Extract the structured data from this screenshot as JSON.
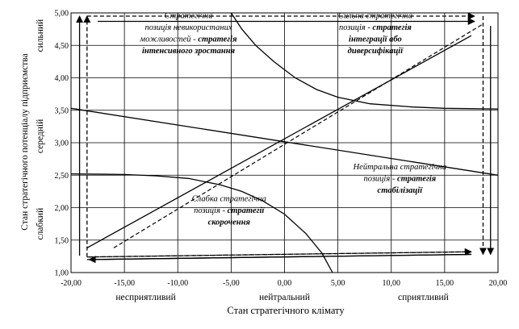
{
  "chart_data": {
    "type": "line",
    "xlabel": "Стан стратегічного  клімату",
    "ylabel": "Стан стратегічного потенціалу підприємства",
    "xlim": [
      -20,
      20
    ],
    "ylim": [
      1,
      5
    ],
    "x_ticks": [
      "-20,00",
      "-15,00",
      "-10,00",
      "-5,00",
      "0,00",
      "5,00",
      "10,00",
      "15,00",
      "20,00"
    ],
    "y_ticks": [
      "1,00",
      "1,50",
      "2,00",
      "2,50",
      "3,00",
      "3,50",
      "4,00",
      "4,50",
      "5,00"
    ],
    "x_categories": [
      {
        "label": "несприятливий",
        "x": -13
      },
      {
        "label": "нейтральний",
        "x": 0
      },
      {
        "label": "сприятливий",
        "x": 13
      }
    ],
    "y_categories": [
      {
        "label": "слабкий",
        "y": 1.75
      },
      {
        "label": "середній",
        "y": 3.1
      },
      {
        "label": "сильний",
        "y": 4.65
      }
    ],
    "grid": true,
    "series": [
      {
        "style": "solid",
        "points": [
          [
            -18.5,
            1.38
          ],
          [
            17.5,
            4.65
          ]
        ]
      },
      {
        "style": "dashed",
        "points": [
          [
            -16,
            1.38
          ],
          [
            18.5,
            4.82
          ]
        ]
      },
      {
        "style": "solid",
        "points": [
          [
            -20,
            3.53
          ],
          [
            20,
            2.5
          ]
        ]
      },
      {
        "style": "solid",
        "points": [
          [
            -5,
            5.0
          ],
          [
            -4,
            4.75
          ],
          [
            -2.7,
            4.5
          ],
          [
            -1,
            4.25
          ],
          [
            1,
            4.0
          ],
          [
            3,
            3.82
          ],
          [
            5,
            3.7
          ],
          [
            8,
            3.6
          ],
          [
            12,
            3.55
          ],
          [
            15,
            3.53
          ],
          [
            20,
            3.52
          ]
        ]
      },
      {
        "style": "solid",
        "points": [
          [
            -20,
            2.52
          ],
          [
            -15,
            2.51
          ],
          [
            -12,
            2.49
          ],
          [
            -9,
            2.45
          ],
          [
            -6,
            2.35
          ],
          [
            -4,
            2.25
          ],
          [
            -2,
            2.1
          ],
          [
            0,
            1.9
          ],
          [
            2,
            1.6
          ],
          [
            3.5,
            1.3
          ],
          [
            4.5,
            1.0
          ]
        ]
      },
      {
        "style": "solid",
        "points": [
          [
            -18.5,
            1.2
          ],
          [
            17.5,
            1.28
          ]
        ]
      },
      {
        "style": "dashed",
        "points": [
          [
            -18.5,
            1.24
          ],
          [
            17.5,
            1.32
          ]
        ]
      }
    ],
    "arrows": [
      {
        "style": "solid",
        "from": [
          -19.2,
          1.26
        ],
        "to": [
          -19.2,
          4.95
        ]
      },
      {
        "style": "dashed",
        "from": [
          -18.5,
          1.24
        ],
        "to": [
          -18.5,
          4.95
        ]
      },
      {
        "style": "dashed",
        "from": [
          -18.5,
          4.95
        ],
        "to": [
          17.8,
          4.95
        ]
      },
      {
        "style": "solid",
        "from": [
          -17.5,
          4.87
        ],
        "to": [
          17.8,
          4.87
        ]
      },
      {
        "style": "dashed",
        "from": [
          18.6,
          4.95
        ],
        "to": [
          18.6,
          1.28
        ]
      },
      {
        "style": "solid",
        "from": [
          19.3,
          4.8
        ],
        "to": [
          19.3,
          1.28
        ]
      },
      {
        "style": "solid",
        "from": [
          17.5,
          1.28
        ],
        "to": [
          -18.3,
          1.2
        ]
      },
      {
        "style": "dashed",
        "from": [
          -18.3,
          1.24
        ],
        "to": [
          17.5,
          1.32
        ]
      }
    ],
    "annotations": [
      {
        "x": -9,
        "y": 4.65,
        "lines": [
          [
            {
              "t": "Стратегічна",
              "b": false
            }
          ],
          [
            {
              "t": "позиція невикористаних",
              "b": false
            }
          ],
          [
            {
              "t": "можливостей - ",
              "b": false
            },
            {
              "t": "стратегія",
              "b": true
            }
          ],
          [
            {
              "t": "інтенсивного зростання",
              "b": true
            }
          ]
        ]
      },
      {
        "x": 8.5,
        "y": 4.65,
        "lines": [
          [
            {
              "t": "Сильна стратегічна",
              "b": false
            }
          ],
          [
            {
              "t": "позиція - ",
              "b": false
            },
            {
              "t": "стратегія",
              "b": true
            }
          ],
          [
            {
              "t": "інтеграції або",
              "b": true
            }
          ],
          [
            {
              "t": "диверсифікації",
              "b": true
            }
          ]
        ]
      },
      {
        "x": 10.8,
        "y": 2.41,
        "lines": [
          [
            {
              "t": "Нейтральна стратегічна",
              "b": false
            }
          ],
          [
            {
              "t": "позиція - ",
              "b": false
            },
            {
              "t": "стратегія",
              "b": true
            }
          ],
          [
            {
              "t": "стабілізації",
              "b": true
            }
          ]
        ]
      },
      {
        "x": -5.2,
        "y": 1.92,
        "lines": [
          [
            {
              "t": "Слабка стратегічна",
              "b": false
            }
          ],
          [
            {
              "t": "позиція - ",
              "b": false
            },
            {
              "t": "стратегії",
              "b": true
            }
          ],
          [
            {
              "t": "скорочення",
              "b": true
            }
          ]
        ]
      }
    ]
  }
}
